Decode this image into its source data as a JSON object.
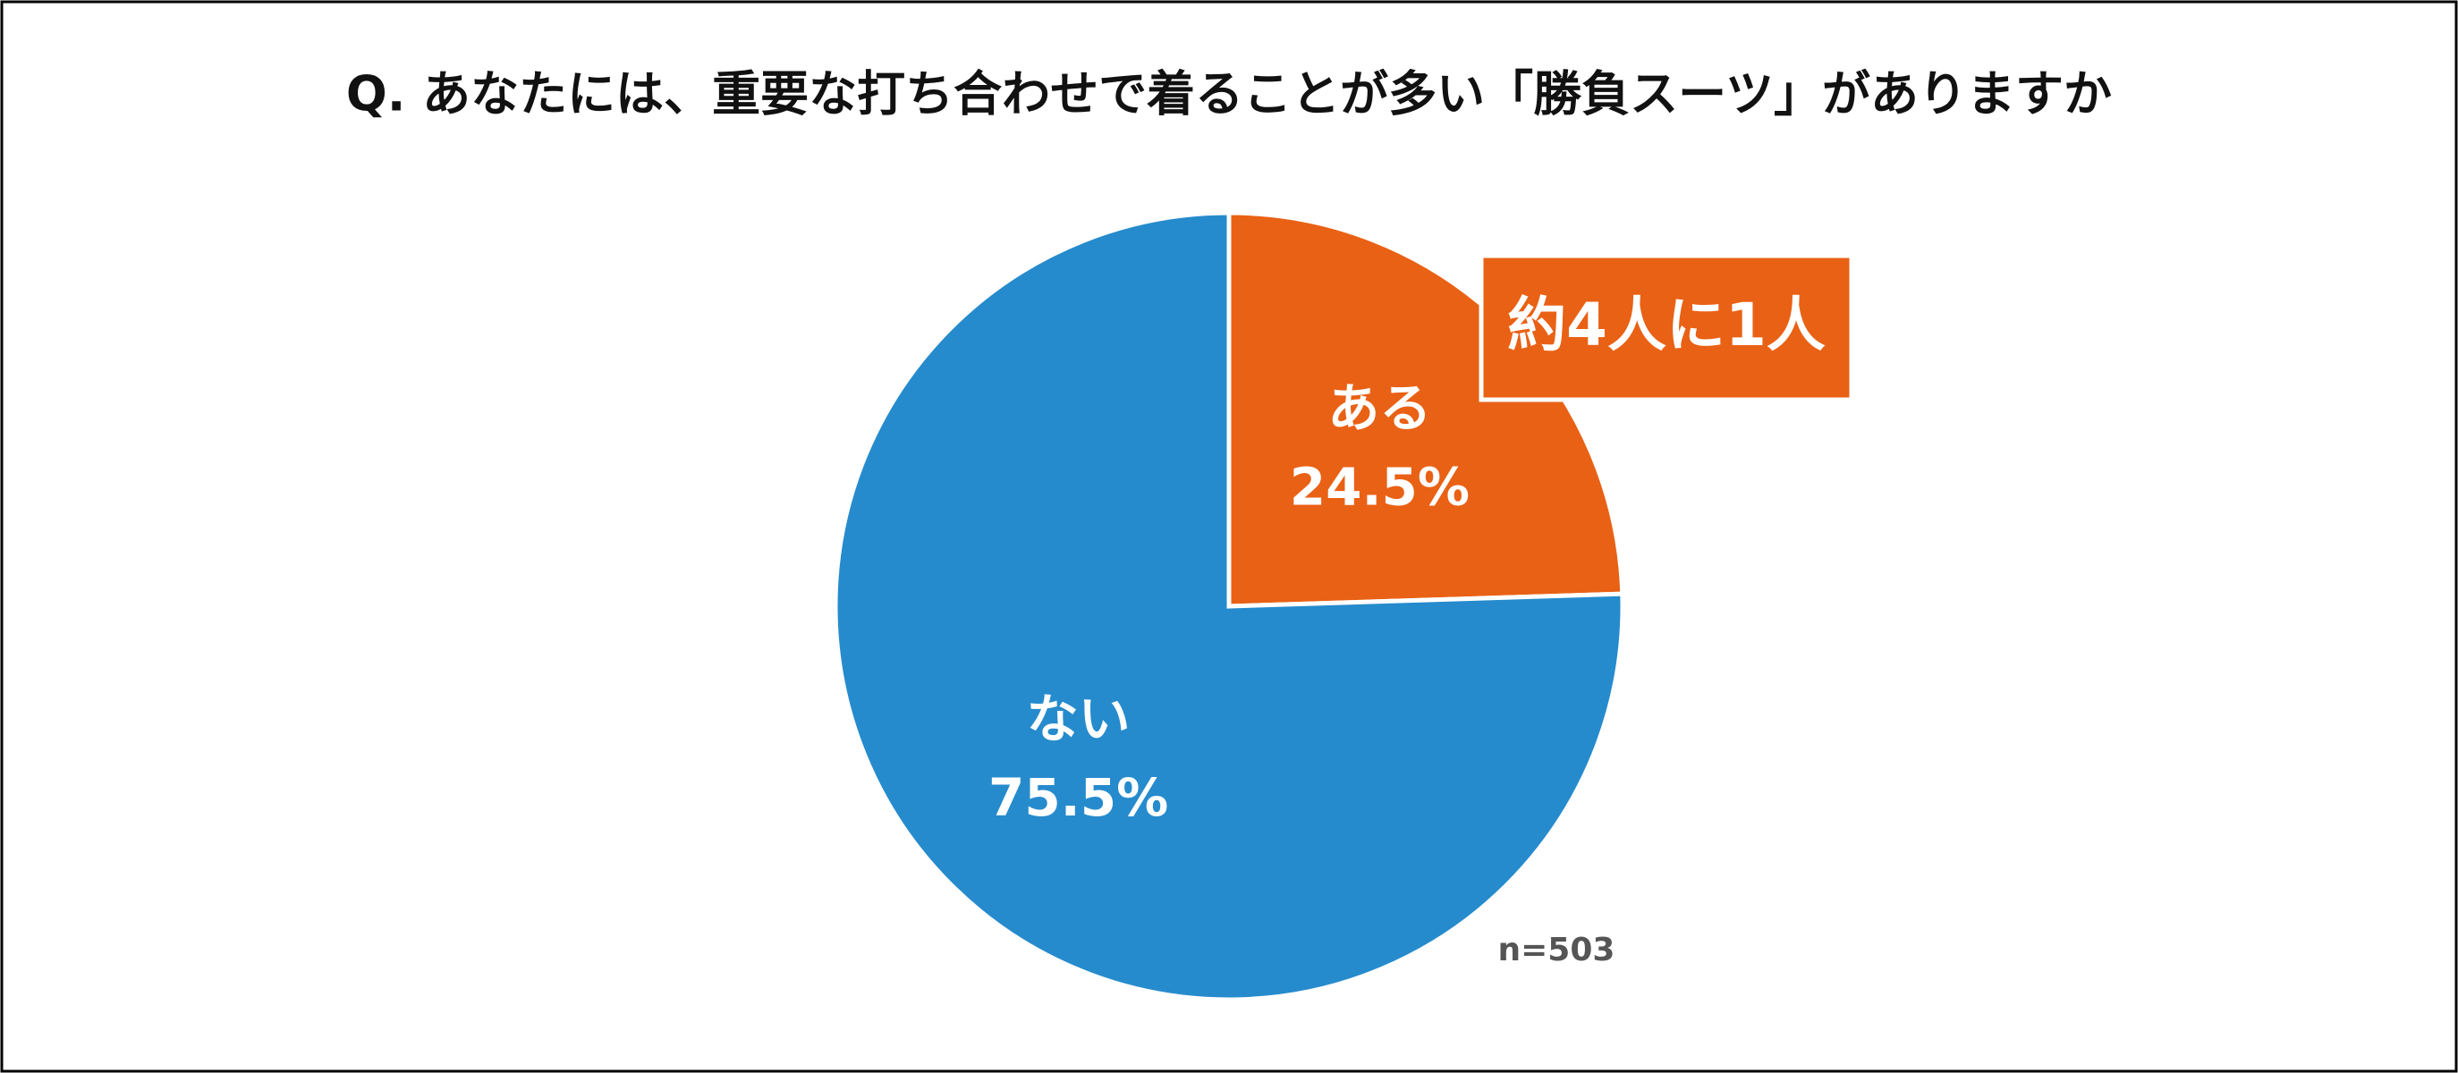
{
  "chart_data": {
    "type": "pie",
    "title": "Q. あなたには、重要な打ち合わせで着ることが多い「勝負スーツ」がありますか",
    "categories": [
      "ある",
      "ない"
    ],
    "values": [
      24.5,
      75.5
    ],
    "value_labels": [
      "24.5%",
      "75.5%"
    ],
    "colors": [
      "#e96114",
      "#268bcd"
    ],
    "annotation": "約4人に1人",
    "note": "n=503"
  }
}
